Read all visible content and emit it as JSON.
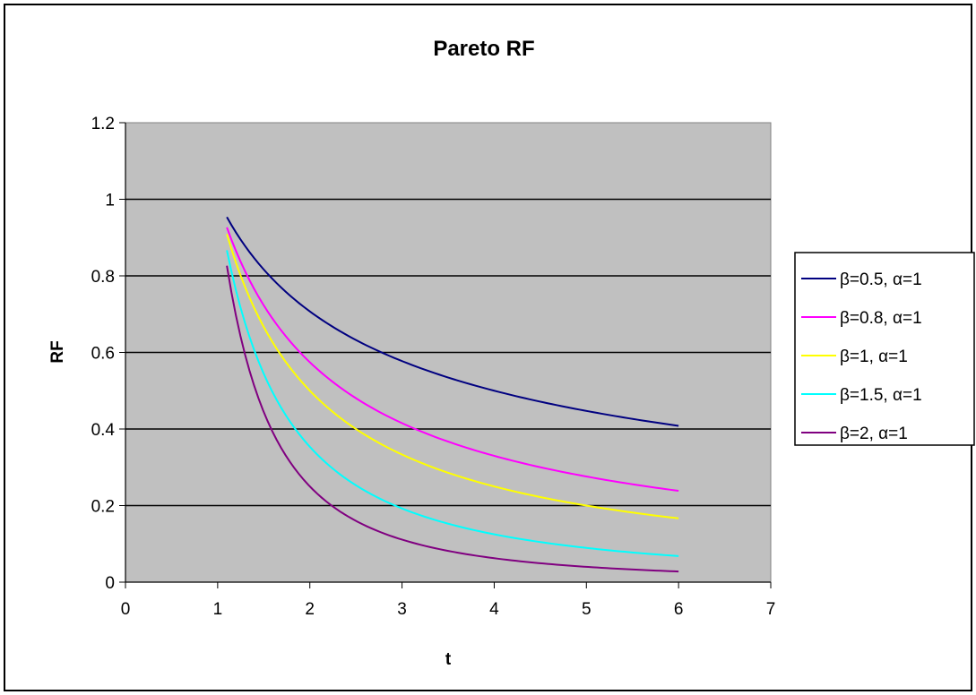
{
  "chart_data": {
    "type": "line",
    "title": "Pareto RF",
    "xlabel": "t",
    "ylabel": "RF",
    "xlim": [
      0,
      7
    ],
    "ylim": [
      0,
      1.2
    ],
    "x_ticks": [
      "0",
      "1",
      "2",
      "3",
      "4",
      "5",
      "6",
      "7"
    ],
    "y_ticks": [
      "0",
      "0.2",
      "0.4",
      "0.6",
      "0.8",
      "1",
      "1.2"
    ],
    "grid": "horizontal",
    "legend_position": "right",
    "plot_background": "#c0c0c0",
    "t_start": 1.1,
    "t_end": 6.0,
    "series": [
      {
        "name": "β=0.5, α=1",
        "beta": 0.5,
        "alpha": 1,
        "color": "#000080"
      },
      {
        "name": "β=0.8, α=1",
        "beta": 0.8,
        "alpha": 1,
        "color": "#ff00ff"
      },
      {
        "name": "β=1, α=1",
        "beta": 1,
        "alpha": 1,
        "color": "#ffff00"
      },
      {
        "name": "β=1.5, α=1",
        "beta": 1.5,
        "alpha": 1,
        "color": "#00ffff"
      },
      {
        "name": "β=2, α=1",
        "beta": 2,
        "alpha": 1,
        "color": "#800080"
      }
    ]
  }
}
